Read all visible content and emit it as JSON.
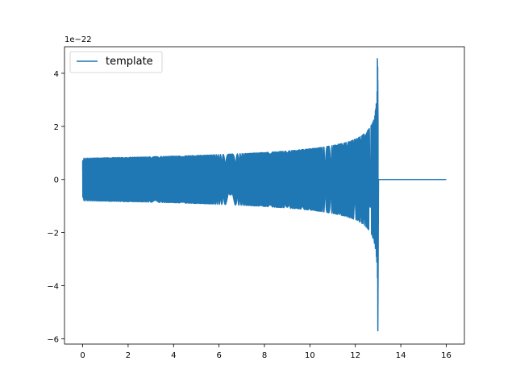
{
  "chart_data": {
    "type": "line",
    "title": "",
    "xlabel": "",
    "ylabel": "",
    "y_offset_label": "1e−22",
    "xlim": [
      -0.8,
      16.8
    ],
    "ylim": [
      -6.2,
      5.0
    ],
    "xticks": [
      0,
      2,
      4,
      6,
      8,
      10,
      12,
      14,
      16
    ],
    "xtick_labels": [
      "0",
      "2",
      "4",
      "6",
      "8",
      "10",
      "12",
      "14",
      "16"
    ],
    "yticks": [
      -6,
      -4,
      -2,
      0,
      2,
      4
    ],
    "ytick_labels": [
      "−6",
      "−4",
      "−2",
      "0",
      "2",
      "4"
    ],
    "grid": false,
    "legend": {
      "position": "top-left",
      "entries": [
        "template"
      ]
    },
    "series": [
      {
        "name": "template",
        "color": "#1f77b4",
        "description_points": {
          "t_start": 0.0,
          "t_merger": 13.0,
          "t_end": 16.0,
          "initial_amplitude": 0.8,
          "peak_max": 4.55,
          "peak_min": -5.7
        }
      }
    ]
  }
}
